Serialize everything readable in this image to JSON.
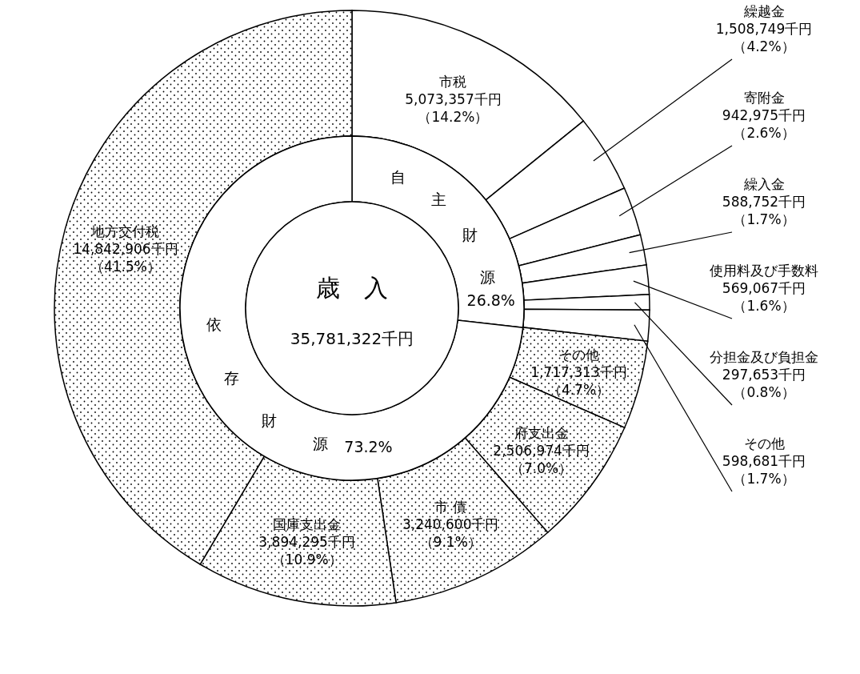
{
  "chart_data": [
    {
      "type": "donut",
      "categories": [
        "市税",
        "繰越金",
        "寄附金",
        "繰入金",
        "使用料及び手数料",
        "分担金及び負担金",
        "その他",
        "その他",
        "府支出金",
        "市 債",
        "国庫支出金",
        "地方交付税"
      ],
      "values": [
        5073357,
        1508749,
        942975,
        588752,
        569067,
        297653,
        598681,
        1717313,
        2506974,
        3240600,
        3894295,
        14842906
      ],
      "value_labels": [
        "5,073,357千円（14.2%）",
        "1,508,749千円（4.2%）",
        "942,975千円（2.6%）",
        "588,752千円（1.7%）",
        "569,067千円（1.6%）",
        "297,653千円（0.8%）",
        "598,681千円（1.7%）",
        "1,717,313千円（4.7%）",
        "2,506,974千円（7.0%）",
        "3,240,600千円（9.1%）",
        "3,894,295千円（10.9%）",
        "14,842,906千円（41.5%）"
      ],
      "colors": [
        "#ffffff",
        "#ffffff",
        "#ffffff",
        "#ffffff",
        "#ffffff",
        "#ffffff",
        "#ffffff",
        "#000000",
        "#000000",
        "#000000",
        "#000000",
        "#000000"
      ]
    },
    {
      "type": "donut",
      "title": "歳　入",
      "annotations": [
        "35,781,322千円"
      ],
      "categories": [
        "自主財源",
        "依存財源"
      ],
      "values": [
        26.8,
        73.2
      ],
      "value_labels": [
        "26.8%",
        "73.2%"
      ],
      "colors": [
        "#ffffff",
        "#ffffff"
      ]
    }
  ]
}
